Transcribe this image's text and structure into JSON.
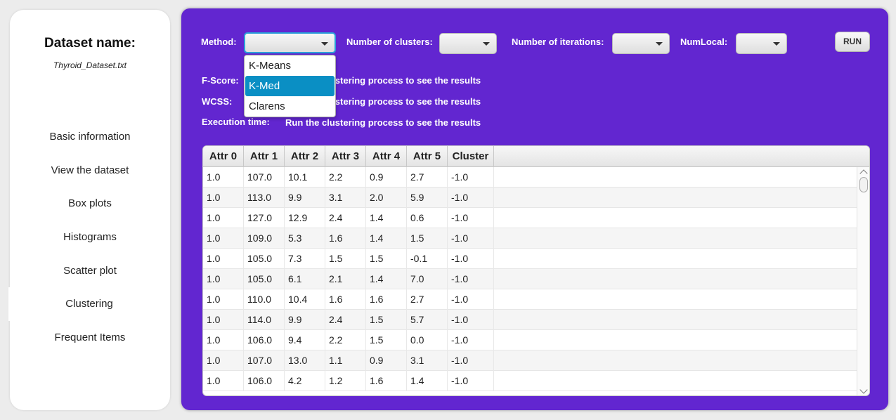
{
  "sidebar": {
    "dataset_label": "Dataset name:",
    "dataset_file": "Thyroid_Dataset.txt",
    "items": [
      {
        "label": "Basic information"
      },
      {
        "label": "View the dataset"
      },
      {
        "label": "Box plots"
      },
      {
        "label": "Histograms"
      },
      {
        "label": "Scatter plot"
      },
      {
        "label": "Clustering"
      },
      {
        "label": "Frequent Items"
      }
    ]
  },
  "controls": {
    "method_label": "Method:",
    "method_value": "",
    "clusters_label": "Number of clusters:",
    "clusters_value": "",
    "iterations_label": "Number of iterations:",
    "iterations_value": "",
    "numlocal_label": "NumLocal:",
    "numlocal_value": "",
    "run_label": "RUN"
  },
  "method_options": [
    "K-Means",
    "K-Med",
    "Clarens"
  ],
  "method_highlighted": "K-Med",
  "results": {
    "fscore_label": "F-Score:",
    "wcss_label": "WCSS:",
    "time_label": "Execution time:",
    "placeholder": "Run the clustering process to see the results"
  },
  "table": {
    "columns": [
      "Attr 0",
      "Attr 1",
      "Attr 2",
      "Attr 3",
      "Attr 4",
      "Attr 5",
      "Cluster"
    ],
    "rows": [
      [
        "1.0",
        "107.0",
        "10.1",
        "2.2",
        "0.9",
        "2.7",
        "-1.0"
      ],
      [
        "1.0",
        "113.0",
        "9.9",
        "3.1",
        "2.0",
        "5.9",
        "-1.0"
      ],
      [
        "1.0",
        "127.0",
        "12.9",
        "2.4",
        "1.4",
        "0.6",
        "-1.0"
      ],
      [
        "1.0",
        "109.0",
        "5.3",
        "1.6",
        "1.4",
        "1.5",
        "-1.0"
      ],
      [
        "1.0",
        "105.0",
        "7.3",
        "1.5",
        "1.5",
        "-0.1",
        "-1.0"
      ],
      [
        "1.0",
        "105.0",
        "6.1",
        "2.1",
        "1.4",
        "7.0",
        "-1.0"
      ],
      [
        "1.0",
        "110.0",
        "10.4",
        "1.6",
        "1.6",
        "2.7",
        "-1.0"
      ],
      [
        "1.0",
        "114.0",
        "9.9",
        "2.4",
        "1.5",
        "5.7",
        "-1.0"
      ],
      [
        "1.0",
        "106.0",
        "9.4",
        "2.2",
        "1.5",
        "0.0",
        "-1.0"
      ],
      [
        "1.0",
        "107.0",
        "13.0",
        "1.1",
        "0.9",
        "3.1",
        "-1.0"
      ],
      [
        "1.0",
        "106.0",
        "4.2",
        "1.2",
        "1.6",
        "1.4",
        "-1.0"
      ]
    ]
  },
  "colors": {
    "main_bg": "#6226d0",
    "selection": "#0a8fc4",
    "focus_border": "#2aa0d8"
  }
}
